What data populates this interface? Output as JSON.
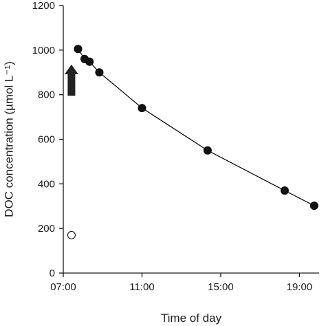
{
  "chart_data": {
    "type": "scatter",
    "xlabel": "Time of day",
    "ylabel": "DOC concentration (µmol L⁻¹)",
    "x_ticks": [
      "07:00",
      "11:00",
      "15:00",
      "19:00"
    ],
    "y_ticks": [
      0,
      200,
      400,
      600,
      800,
      1000,
      1200
    ],
    "xlim": [
      "07:00",
      "20:00"
    ],
    "ylim": [
      0,
      1200
    ],
    "grid": false,
    "legend": "none",
    "series": [
      {
        "marker": "filled-circle",
        "connected": true,
        "points": [
          {
            "x": "07:45",
            "y": 1005
          },
          {
            "x": "08:05",
            "y": 960
          },
          {
            "x": "08:20",
            "y": 948
          },
          {
            "x": "08:50",
            "y": 900
          },
          {
            "x": "11:00",
            "y": 740
          },
          {
            "x": "14:20",
            "y": 550
          },
          {
            "x": "18:15",
            "y": 370
          },
          {
            "x": "19:45",
            "y": 302
          }
        ]
      },
      {
        "marker": "open-circle",
        "connected": false,
        "points": [
          {
            "x": "07:25",
            "y": 170
          }
        ]
      }
    ],
    "annotations": [
      {
        "type": "arrow",
        "direction": "up",
        "x": "07:25",
        "y_from": 795,
        "y_to": 935
      }
    ]
  }
}
